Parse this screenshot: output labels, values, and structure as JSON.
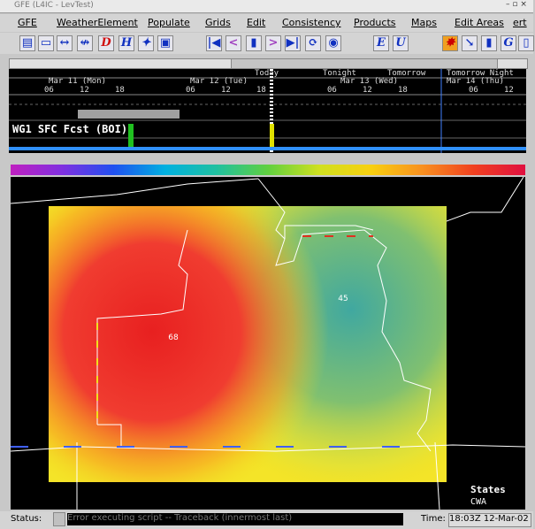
{
  "window_title": "GFE (L4IC - LevTest)",
  "menu": [
    "GFE",
    "WeatherElement",
    "Populate",
    "Grids",
    "Edit",
    "Consistency",
    "Products",
    "Maps",
    "Edit Areas",
    "ert"
  ],
  "toolbar_buttons": [
    "D",
    "H",
    "E",
    "U"
  ],
  "timeline": {
    "periods": [
      "Today",
      "Tonight",
      "Tomorrow",
      "Tomorrow Night"
    ],
    "days": [
      "Mar 11 (Mon)",
      "Mar 12 (Tue)",
      "Mar 13 (Wed)",
      "Mar 14 (Thu)"
    ],
    "hours": [
      "06",
      "12",
      "18",
      "06",
      "12",
      "18",
      "06",
      "12",
      "18",
      "06",
      "12"
    ],
    "grid_label": "WG1 SFC Fcst (BOI)"
  },
  "map": {
    "point_labels": [
      "68",
      "45"
    ],
    "legend": [
      "States",
      "CWA"
    ]
  },
  "status": {
    "label": "Status:",
    "message": "Error executing script -- Traceback (innermost last)",
    "time_label": "Time:",
    "time": "18:03Z 12-Mar-02"
  }
}
